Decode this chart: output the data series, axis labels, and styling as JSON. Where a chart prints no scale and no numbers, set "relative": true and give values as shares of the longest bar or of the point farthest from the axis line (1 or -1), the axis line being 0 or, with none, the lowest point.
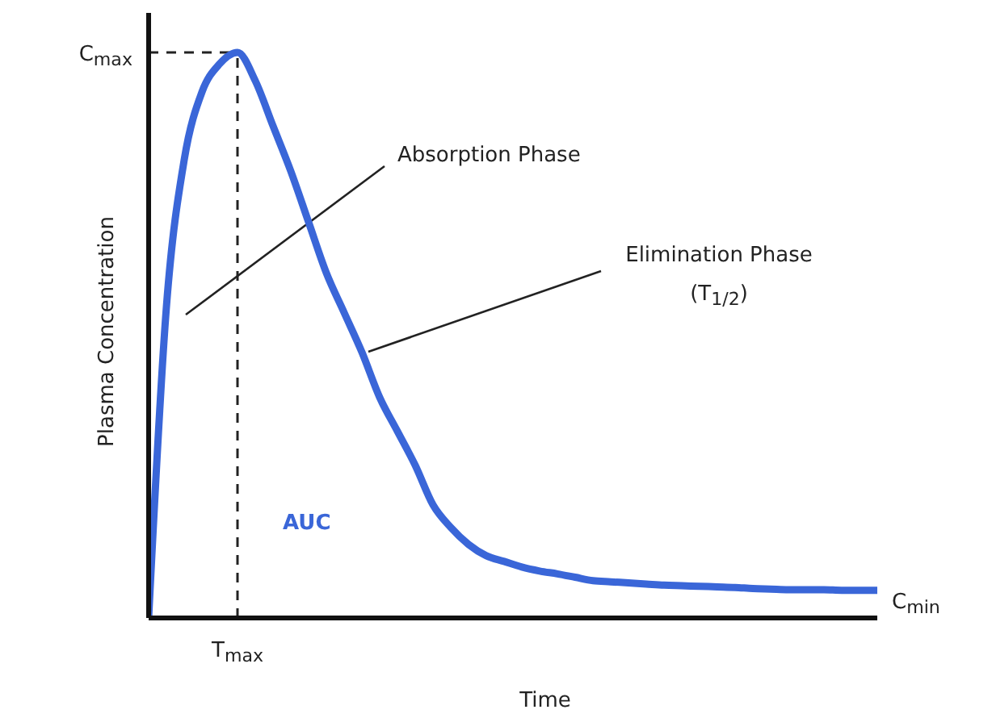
{
  "chart_data": {
    "type": "line",
    "relative": true,
    "xlabel": "Time",
    "ylabel": "Plasma Concentration",
    "categories": [
      null,
      null,
      null,
      null,
      null,
      null,
      null,
      null,
      null,
      null,
      null,
      null,
      null,
      null,
      null,
      null,
      null,
      null,
      null,
      null,
      null,
      null,
      null,
      null,
      null,
      null,
      null,
      null,
      null,
      null,
      null,
      null,
      null,
      null,
      null,
      null,
      null,
      null,
      null,
      null,
      null,
      null
    ],
    "series": [
      {
        "color": "#3a66d8",
        "values": [
          0,
          0.55,
          0.81,
          0.93,
          0.98,
          1,
          0.95,
          0.87,
          0.79,
          0.7,
          0.61,
          0.54,
          0.47,
          0.39,
          0.33,
          0.27,
          0.2,
          0.16,
          0.13,
          0.11,
          0.1,
          0.09,
          0.083,
          0.078,
          0.072,
          0.066,
          0.064,
          0.062,
          0.06,
          0.058,
          0.057,
          0.056,
          0.055,
          0.054,
          0.052,
          0.051,
          0.05,
          0.05,
          0.05,
          0.049,
          0.049,
          0.049
        ]
      }
    ],
    "ref_lines": [
      {
        "axis": "x",
        "label": "T$_{max}$",
        "line_style": "dashed"
      },
      {
        "axis": "y",
        "value": 1,
        "label": "C$_{max}$",
        "line_style": "dashed"
      }
    ],
    "annotations": [
      "Absorption Phase",
      "Elimination Phase (T$_{1/2}$)",
      "AUC",
      "C$_{min}$"
    ],
    "grid": false,
    "legend": false,
    "marker": "none",
    "line_style": "solid"
  }
}
